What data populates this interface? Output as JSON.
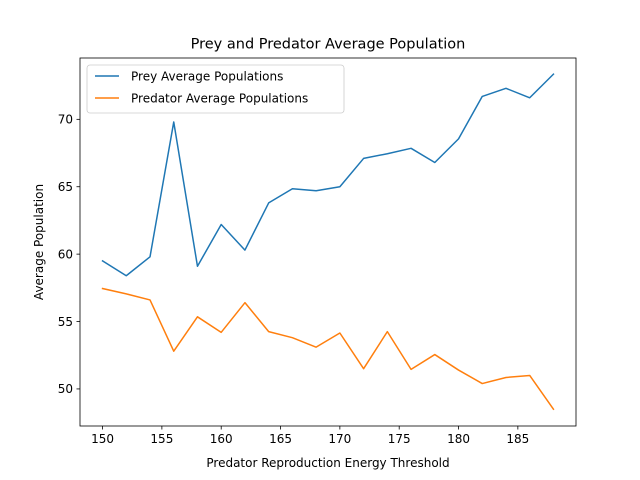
{
  "chart_data": {
    "type": "line",
    "title": "Prey and Predator Average Population",
    "xlabel": "Predator Reproduction Energy Threshold",
    "ylabel": "Average Population",
    "xlim": [
      148.1,
      189.9
    ],
    "ylim": [
      47.25,
      74.55
    ],
    "xticks": [
      150,
      155,
      160,
      165,
      170,
      175,
      180,
      185
    ],
    "yticks": [
      50,
      55,
      60,
      65,
      70
    ],
    "grid": false,
    "legend_position": "top-left",
    "x": [
      150,
      152,
      154,
      156,
      158,
      160,
      162,
      164,
      166,
      168,
      170,
      172,
      174,
      176,
      178,
      180,
      182,
      184,
      186,
      188
    ],
    "series": [
      {
        "name": "Prey Average Populations",
        "color": "#1f77b4",
        "values": [
          59.5,
          58.4,
          59.8,
          69.8,
          59.1,
          62.2,
          60.3,
          63.8,
          64.85,
          64.7,
          65.0,
          67.1,
          67.45,
          67.85,
          66.8,
          68.55,
          71.7,
          72.3,
          71.6,
          73.35
        ]
      },
      {
        "name": "Predator Average Populations",
        "color": "#ff7f0e",
        "values": [
          57.45,
          57.05,
          56.6,
          52.8,
          55.35,
          54.2,
          56.4,
          54.25,
          53.8,
          53.1,
          54.15,
          51.5,
          54.25,
          51.45,
          52.55,
          51.4,
          50.4,
          50.85,
          51.0,
          48.5
        ]
      }
    ]
  }
}
